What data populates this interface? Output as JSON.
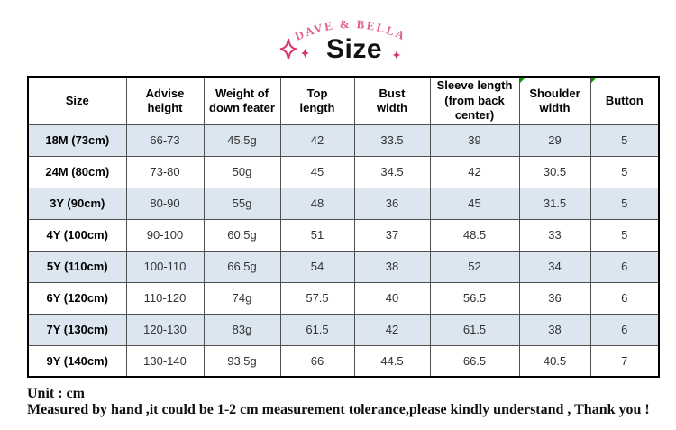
{
  "brand": "DAVE & BELLA",
  "title": "Size",
  "table": {
    "headers": [
      "Size",
      "Advise\nheight",
      "Weight of\ndown feater",
      "Top\nlength",
      "Bust\nwidth",
      "Sleeve length\n(from back\ncenter)",
      "Shoulder\nwidth",
      "Button"
    ],
    "comment_marker_columns": [
      6,
      7
    ],
    "rows": [
      [
        "18M (73cm)",
        "66-73",
        "45.5g",
        "42",
        "33.5",
        "39",
        "29",
        "5"
      ],
      [
        "24M (80cm)",
        "73-80",
        "50g",
        "45",
        "34.5",
        "42",
        "30.5",
        "5"
      ],
      [
        "3Y (90cm)",
        "80-90",
        "55g",
        "48",
        "36",
        "45",
        "31.5",
        "5"
      ],
      [
        "4Y (100cm)",
        "90-100",
        "60.5g",
        "51",
        "37",
        "48.5",
        "33",
        "5"
      ],
      [
        "5Y (110cm)",
        "100-110",
        "66.5g",
        "54",
        "38",
        "52",
        "34",
        "6"
      ],
      [
        "6Y (120cm)",
        "110-120",
        "74g",
        "57.5",
        "40",
        "56.5",
        "36",
        "6"
      ],
      [
        "7Y (130cm)",
        "120-130",
        "83g",
        "61.5",
        "42",
        "61.5",
        "38",
        "6"
      ],
      [
        "9Y (140cm)",
        "130-140",
        "93.5g",
        "66",
        "44.5",
        "66.5",
        "40.5",
        "7"
      ]
    ]
  },
  "footer": {
    "unit": "Unit : cm",
    "note": "Measured by hand ,it could be 1-2 cm measurement tolerance,please kindly understand , Thank you !"
  },
  "colors": {
    "brand_pink": "#e0628c",
    "sparkle_pink": "#d6336c",
    "row_alt": "#dce6f1",
    "marker_green": "#00a000"
  }
}
